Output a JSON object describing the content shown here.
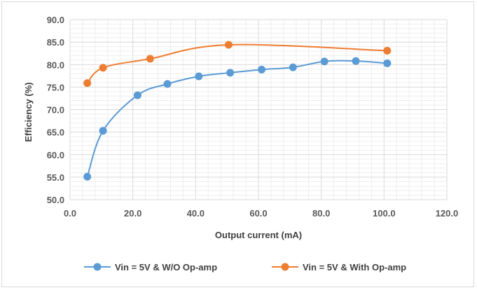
{
  "chart_data": {
    "type": "line",
    "xlabel": "Output current (mA)",
    "ylabel": "Efficiency (%)",
    "xlim": [
      0,
      120
    ],
    "ylim": [
      50,
      90
    ],
    "xticks": [
      "0.0",
      "20.0",
      "40.0",
      "60.0",
      "80.0",
      "100.0",
      "120.0"
    ],
    "yticks": [
      "50.0",
      "55.0",
      "60.0",
      "65.0",
      "70.0",
      "75.0",
      "80.0",
      "85.0",
      "90.0"
    ],
    "grid": true,
    "legend_position": "bottom",
    "smooth": true,
    "series": [
      {
        "name": "Vin = 5V & W/O Op-amp",
        "color": "#5b9bd5",
        "x": [
          5.5,
          10.5,
          21.5,
          31,
          41,
          51,
          61,
          71,
          81,
          91,
          101
        ],
        "y": [
          55.1,
          65.3,
          73.2,
          75.7,
          77.4,
          78.2,
          78.9,
          79.4,
          80.7,
          80.8,
          80.3
        ]
      },
      {
        "name": "Vin = 5V & With Op-amp",
        "color": "#ed7d31",
        "x": [
          5.5,
          10.5,
          25.5,
          50.5,
          101
        ],
        "y": [
          75.9,
          79.3,
          81.3,
          84.4,
          83.1
        ]
      }
    ]
  }
}
